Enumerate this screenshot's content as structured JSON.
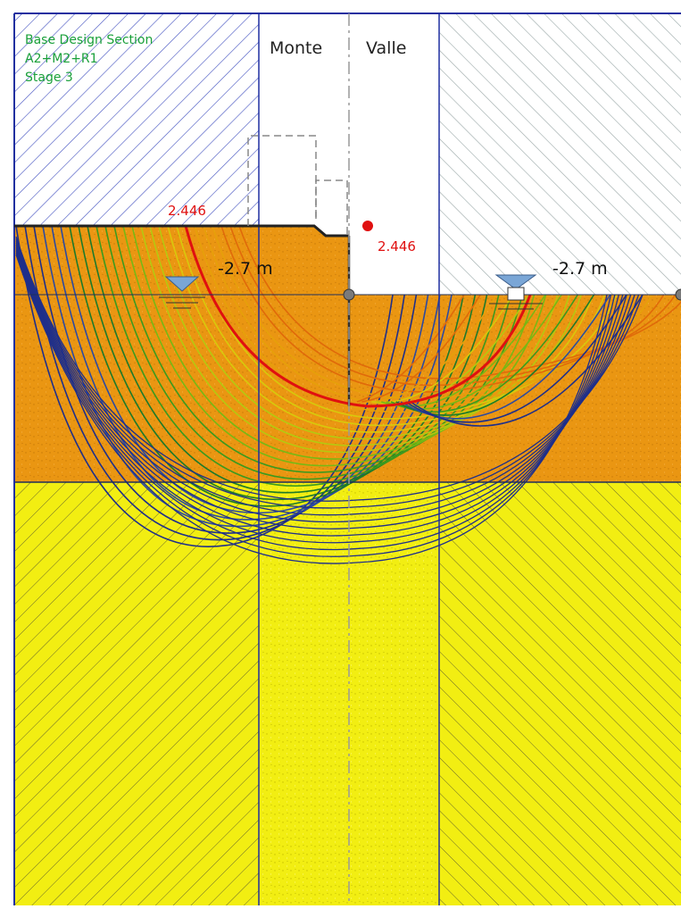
{
  "header": {
    "left_zone_label": "Monte",
    "right_zone_label": "Valle"
  },
  "info": {
    "line1": "Base Design Section",
    "line2": "A2+M2+R1",
    "line3": "Stage 3"
  },
  "results": {
    "critical_fs_label": "2.446",
    "critical_center_label": "2.446"
  },
  "water": {
    "left_level_label": "-2.7 m",
    "right_level_label": "-2.7 m"
  },
  "colors": {
    "outline_blue": "#1f2fa0",
    "hatch_blue": "#4150c0",
    "hatch_gray": "#9aa8a8",
    "clay_orange": "#ea9612",
    "sand_yellow": "#f2ee12",
    "critical_red": "#e01010",
    "text_green": "#1aa03a",
    "water_blue": "#7aa6d6"
  },
  "icons": {
    "water_table_left": "water-table-triangle-icon",
    "water_table_right": "water-table-triangle-icon",
    "wall_anchor_points": "hinge-dot-icon"
  }
}
